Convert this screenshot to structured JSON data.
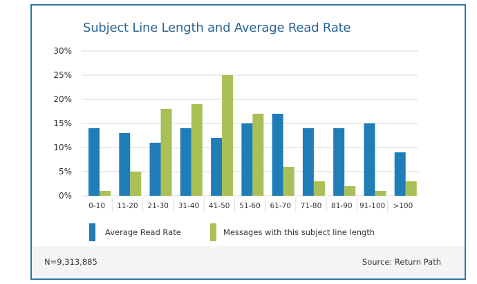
{
  "chart_data": {
    "type": "bar",
    "title": "Subject Line Length and Average Read Rate",
    "categories": [
      "0-10",
      "11-20",
      "21-30",
      "31-40",
      "41-50",
      "51-60",
      "61-70",
      "71-80",
      "81-90",
      "91-100",
      ">100"
    ],
    "series": [
      {
        "name": "Average Read Rate",
        "color": "#1f7db8",
        "values": [
          14,
          13,
          11,
          14,
          12,
          15,
          17,
          14,
          14,
          15,
          9
        ]
      },
      {
        "name": "Messages with this subject line length",
        "color": "#a9c057",
        "values": [
          1,
          5,
          18,
          19,
          25,
          17,
          6,
          3,
          2,
          1,
          3
        ]
      }
    ],
    "ylim": [
      0,
      30
    ],
    "yticks": [
      "0%",
      "5%",
      "10%",
      "15%",
      "20%",
      "25%",
      "30%"
    ],
    "ytick_values": [
      0,
      5,
      10,
      15,
      20,
      25,
      30
    ],
    "grid": true,
    "legend_position": "bottom",
    "xlabel": "",
    "ylabel": ""
  },
  "footer": {
    "sample_size": "N=9,313,885",
    "source": "Source: Return Path"
  }
}
